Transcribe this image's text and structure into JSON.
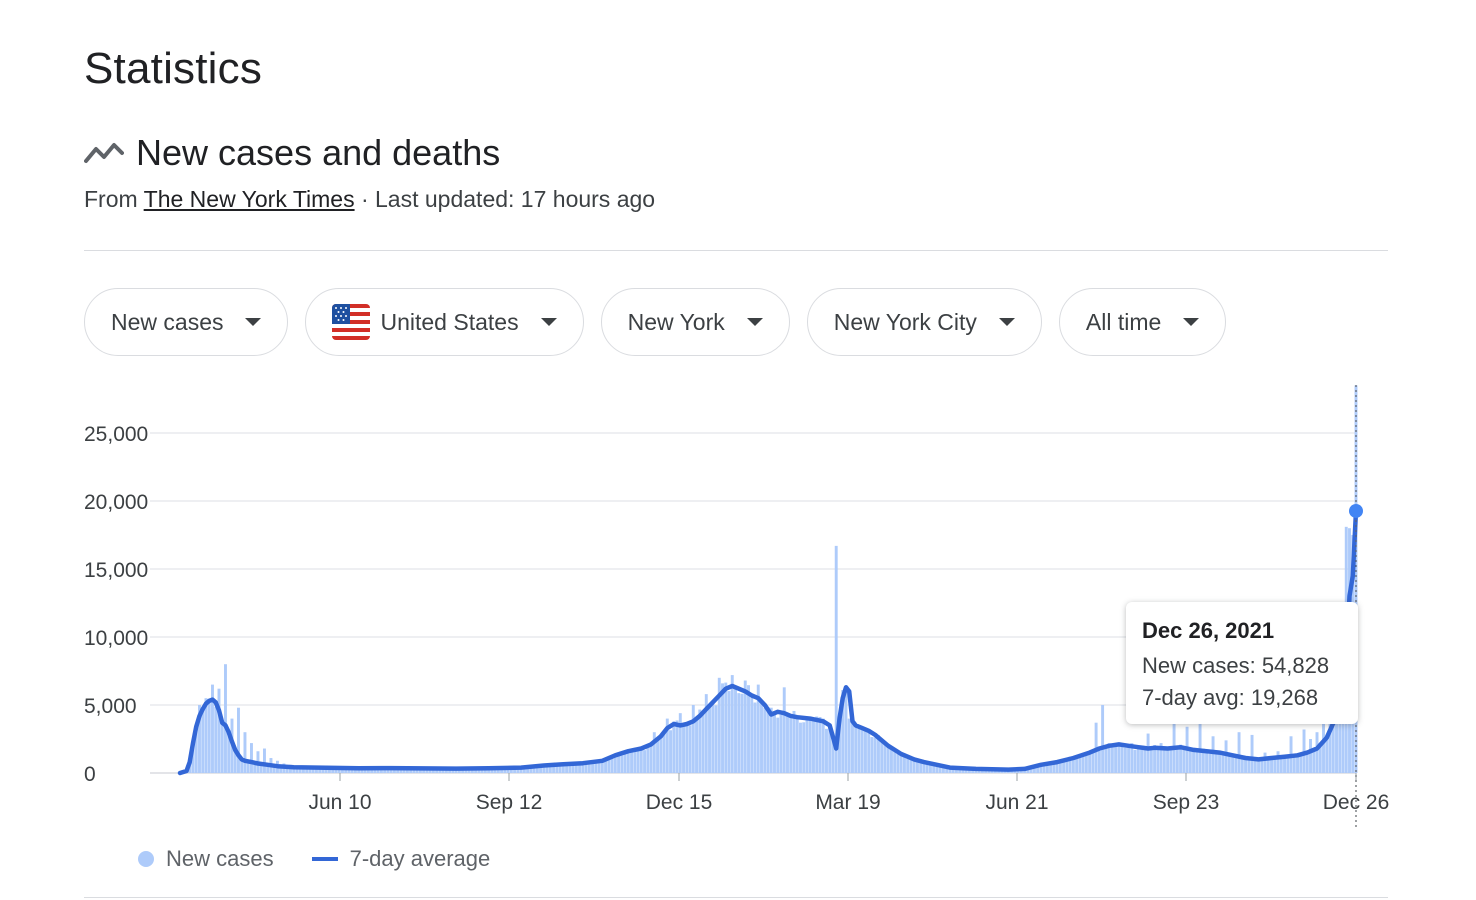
{
  "page": {
    "title": "Statistics"
  },
  "section": {
    "icon": "trend-line-icon",
    "title": "New cases and deaths",
    "source_prefix": "From",
    "source_name": "The New York Times",
    "updated": "· Last updated: 17 hours ago"
  },
  "filters": [
    {
      "label": "New cases",
      "icon": ""
    },
    {
      "label": "United States",
      "icon": "us-flag-icon"
    },
    {
      "label": "New York",
      "icon": ""
    },
    {
      "label": "New York City",
      "icon": ""
    },
    {
      "label": "All time",
      "icon": ""
    }
  ],
  "colors": {
    "bars": "#aecbfa",
    "line": "#3367d6",
    "marker": "#4285f4",
    "grid": "#e8eaed"
  },
  "chart_data": {
    "type": "bar",
    "title": "",
    "xlabel": "",
    "ylabel": "",
    "ylim": [
      0,
      28500
    ],
    "yticks": [
      0,
      5000,
      10000,
      15000,
      20000,
      25000
    ],
    "ytick_labels": [
      "0",
      "5,000",
      "10,000",
      "15,000",
      "20,000",
      "25,000"
    ],
    "x_tick_labels": [
      "Jun 10",
      "Sep 12",
      "Dec 15",
      "Mar 19",
      "Jun 21",
      "Sep 23",
      "Dec 26"
    ],
    "series": [
      {
        "name": "New cases",
        "type": "bar"
      },
      {
        "name": "7-day average",
        "type": "line"
      }
    ],
    "avg_points": [
      [
        0,
        0
      ],
      [
        2,
        150
      ],
      [
        3,
        800
      ],
      [
        4,
        2200
      ],
      [
        5,
        3400
      ],
      [
        6,
        4200
      ],
      [
        7,
        4700
      ],
      [
        8,
        5100
      ],
      [
        9,
        5300
      ],
      [
        10,
        5400
      ],
      [
        11,
        5200
      ],
      [
        12,
        4600
      ],
      [
        13,
        3700
      ],
      [
        14,
        3500
      ],
      [
        15,
        3000
      ],
      [
        16,
        2300
      ],
      [
        17,
        1700
      ],
      [
        18,
        1300
      ],
      [
        19,
        1000
      ],
      [
        20,
        900
      ],
      [
        22,
        800
      ],
      [
        24,
        700
      ],
      [
        27,
        600
      ],
      [
        30,
        500
      ],
      [
        35,
        420
      ],
      [
        45,
        380
      ],
      [
        55,
        350
      ],
      [
        65,
        360
      ],
      [
        75,
        340
      ],
      [
        85,
        320
      ],
      [
        95,
        350
      ],
      [
        105,
        400
      ],
      [
        112,
        550
      ],
      [
        118,
        650
      ],
      [
        124,
        720
      ],
      [
        130,
        900
      ],
      [
        134,
        1300
      ],
      [
        138,
        1600
      ],
      [
        142,
        1800
      ],
      [
        145,
        2100
      ],
      [
        148,
        2700
      ],
      [
        150,
        3300
      ],
      [
        152,
        3600
      ],
      [
        154,
        3500
      ],
      [
        156,
        3600
      ],
      [
        158,
        3800
      ],
      [
        160,
        4200
      ],
      [
        162,
        4700
      ],
      [
        164,
        5200
      ],
      [
        166,
        5700
      ],
      [
        168,
        6200
      ],
      [
        170,
        6400
      ],
      [
        172,
        6200
      ],
      [
        174,
        6000
      ],
      [
        176,
        5700
      ],
      [
        178,
        5500
      ],
      [
        180,
        5000
      ],
      [
        182,
        4300
      ],
      [
        184,
        4500
      ],
      [
        186,
        4400
      ],
      [
        188,
        4200
      ],
      [
        190,
        4100
      ],
      [
        194,
        4000
      ],
      [
        198,
        3800
      ],
      [
        200,
        3500
      ],
      [
        202,
        1800
      ],
      [
        203,
        4000
      ],
      [
        204,
        5500
      ],
      [
        205,
        6300
      ],
      [
        206,
        6000
      ],
      [
        207,
        3800
      ],
      [
        208,
        3500
      ],
      [
        210,
        3300
      ],
      [
        212,
        3100
      ],
      [
        214,
        2800
      ],
      [
        216,
        2400
      ],
      [
        218,
        2000
      ],
      [
        220,
        1700
      ],
      [
        222,
        1400
      ],
      [
        224,
        1200
      ],
      [
        226,
        1000
      ],
      [
        229,
        800
      ],
      [
        233,
        600
      ],
      [
        237,
        400
      ],
      [
        245,
        300
      ],
      [
        255,
        250
      ],
      [
        260,
        300
      ],
      [
        265,
        600
      ],
      [
        270,
        800
      ],
      [
        275,
        1100
      ],
      [
        280,
        1500
      ],
      [
        283,
        1800
      ],
      [
        286,
        2000
      ],
      [
        289,
        2100
      ],
      [
        292,
        2000
      ],
      [
        295,
        1900
      ],
      [
        298,
        1800
      ],
      [
        300,
        1850
      ],
      [
        304,
        1800
      ],
      [
        308,
        1900
      ],
      [
        312,
        1700
      ],
      [
        316,
        1600
      ],
      [
        320,
        1500
      ],
      [
        324,
        1300
      ],
      [
        328,
        1100
      ],
      [
        332,
        1000
      ],
      [
        336,
        1100
      ],
      [
        340,
        1200
      ],
      [
        344,
        1300
      ],
      [
        347,
        1500
      ],
      [
        350,
        1800
      ],
      [
        353,
        2600
      ],
      [
        356,
        4200
      ],
      [
        358,
        6000
      ],
      [
        359,
        8000
      ],
      [
        360,
        13000
      ],
      [
        361,
        14500
      ],
      [
        362,
        19268
      ]
    ],
    "bar_points": [
      [
        4,
        2500
      ],
      [
        6,
        5000
      ],
      [
        8,
        5500
      ],
      [
        10,
        6500
      ],
      [
        12,
        6200
      ],
      [
        14,
        8000
      ],
      [
        16,
        4000
      ],
      [
        18,
        4800
      ],
      [
        20,
        3000
      ],
      [
        22,
        2200
      ],
      [
        24,
        1600
      ],
      [
        26,
        1800
      ],
      [
        28,
        1100
      ],
      [
        30,
        900
      ],
      [
        32,
        700
      ],
      [
        34,
        600
      ],
      [
        38,
        500
      ],
      [
        44,
        500
      ],
      [
        52,
        400
      ],
      [
        60,
        400
      ],
      [
        70,
        380
      ],
      [
        80,
        350
      ],
      [
        90,
        360
      ],
      [
        100,
        420
      ],
      [
        110,
        600
      ],
      [
        120,
        700
      ],
      [
        130,
        900
      ],
      [
        140,
        1800
      ],
      [
        146,
        3000
      ],
      [
        150,
        4000
      ],
      [
        154,
        4400
      ],
      [
        158,
        5000
      ],
      [
        162,
        5800
      ],
      [
        166,
        7000
      ],
      [
        170,
        7200
      ],
      [
        174,
        6800
      ],
      [
        178,
        6500
      ],
      [
        182,
        4800
      ],
      [
        186,
        6300
      ],
      [
        190,
        4200
      ],
      [
        194,
        4100
      ],
      [
        198,
        4000
      ],
      [
        201,
        2600
      ],
      [
        202,
        16700
      ],
      [
        204,
        6100
      ],
      [
        206,
        4000
      ],
      [
        208,
        3500
      ],
      [
        212,
        3100
      ],
      [
        216,
        2500
      ],
      [
        220,
        1700
      ],
      [
        225,
        1200
      ],
      [
        230,
        800
      ],
      [
        238,
        400
      ],
      [
        248,
        300
      ],
      [
        258,
        300
      ],
      [
        266,
        700
      ],
      [
        274,
        1200
      ],
      [
        282,
        3700
      ],
      [
        284,
        5000
      ],
      [
        286,
        2200
      ],
      [
        290,
        2000
      ],
      [
        294,
        1700
      ],
      [
        298,
        2900
      ],
      [
        302,
        2200
      ],
      [
        306,
        3700
      ],
      [
        310,
        3400
      ],
      [
        314,
        3600
      ],
      [
        318,
        2700
      ],
      [
        322,
        2400
      ],
      [
        326,
        3000
      ],
      [
        330,
        2800
      ],
      [
        334,
        1500
      ],
      [
        338,
        1600
      ],
      [
        342,
        2700
      ],
      [
        346,
        3200
      ],
      [
        348,
        2500
      ],
      [
        350,
        3000
      ],
      [
        352,
        5500
      ],
      [
        354,
        6800
      ],
      [
        356,
        8500
      ],
      [
        358,
        11000
      ],
      [
        359,
        18100
      ],
      [
        360,
        18000
      ],
      [
        361,
        17500
      ],
      [
        362,
        28500
      ]
    ],
    "xdomain": [
      0,
      362
    ],
    "tooltip": {
      "date": "Dec 26, 2021",
      "new_cases_label": "New cases: 54,828",
      "avg_label": "7-day avg: 19,268"
    }
  }
}
